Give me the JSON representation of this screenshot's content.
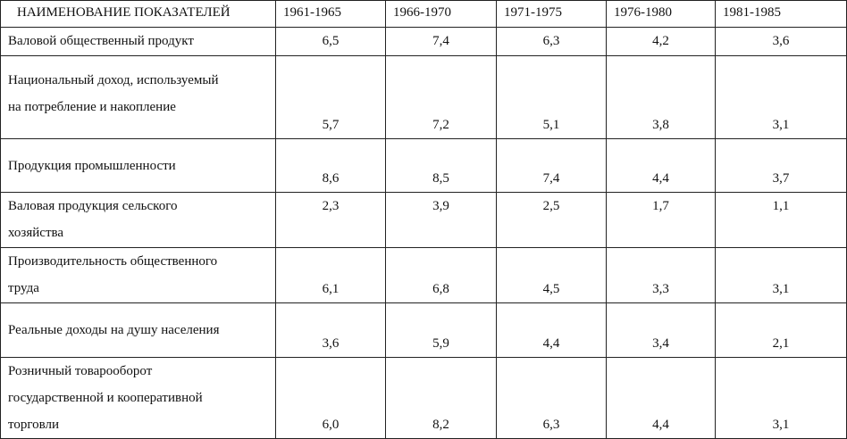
{
  "table": {
    "header": [
      "НАИМЕНОВАНИЕ  ПОКАЗАТЕЛЕЙ",
      "1961-1965",
      "1966-1970",
      "1971-1975",
      "1976-1980",
      "1981-1985"
    ],
    "rows": [
      {
        "label_lines": [
          "Валовой общественный продукт"
        ],
        "values": [
          "6,5",
          "7,4",
          "6,3",
          "4,2",
          "3,6"
        ]
      },
      {
        "label_lines": [
          "Национальный доход, используемый",
          "на потребление и накопление"
        ],
        "values": [
          "5,7",
          "7,2",
          "5,1",
          "3,8",
          "3,1"
        ]
      },
      {
        "label_lines": [
          "Продукция промышленности"
        ],
        "values": [
          "8,6",
          "8,5",
          "7,4",
          "4,4",
          "3,7"
        ]
      },
      {
        "label_lines": [
          "Валовая продукция сельского",
          "хозяйства"
        ],
        "values": [
          "2,3",
          "3,9",
          "2,5",
          "1,7",
          "1,1"
        ]
      },
      {
        "label_lines": [
          "Производительность общественного",
          "труда"
        ],
        "values": [
          "6,1",
          "6,8",
          "4,5",
          "3,3",
          "3,1"
        ]
      },
      {
        "label_lines": [
          "Реальные доходы на душу населения"
        ],
        "values": [
          "3,6",
          "5,9",
          "4,4",
          "3,4",
          "2,1"
        ]
      },
      {
        "label_lines": [
          "Розничный товарооборот",
          "государственной и кооперативной",
          "торговли"
        ],
        "values": [
          "6,0",
          "8,2",
          "6,3",
          "4,4",
          "3,1"
        ]
      }
    ]
  }
}
